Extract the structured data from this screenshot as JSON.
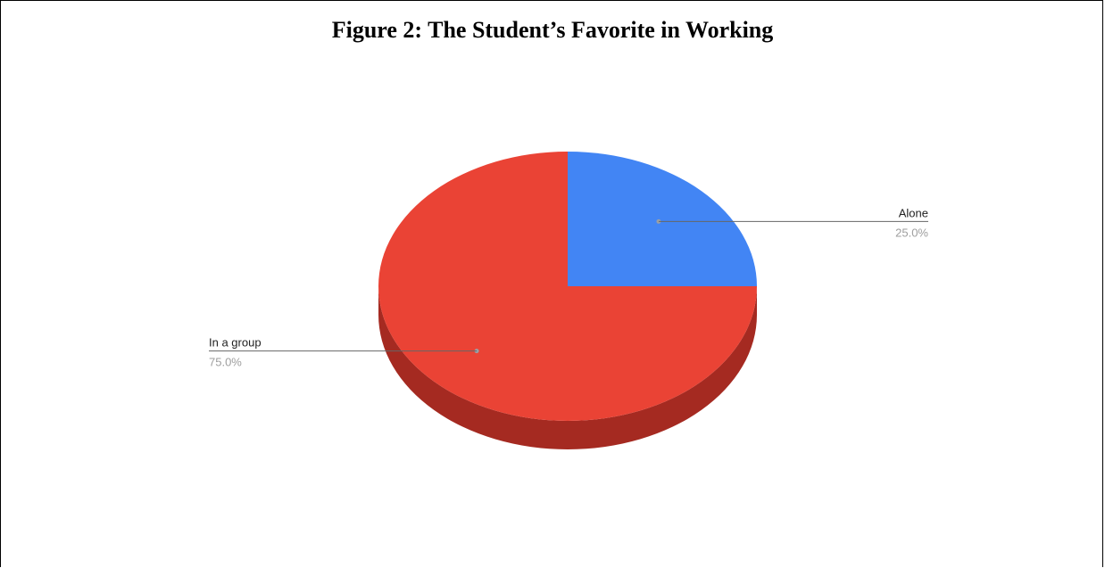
{
  "chart_data": {
    "type": "pie",
    "title": "Figure 2: The Student’s Favorite in Working",
    "three_d": true,
    "slices": [
      {
        "label": "Alone",
        "value": 25.0,
        "percent_label": "25.0%",
        "color": "#4285F4",
        "side_color": "#2A5DB0"
      },
      {
        "label": "In a group",
        "value": 75.0,
        "percent_label": "75.0%",
        "color": "#EA4335",
        "side_color": "#A52A21"
      }
    ],
    "label_color": "#222222",
    "percent_color": "#9E9E9E",
    "leader_color": "#666666",
    "legend": "none"
  }
}
